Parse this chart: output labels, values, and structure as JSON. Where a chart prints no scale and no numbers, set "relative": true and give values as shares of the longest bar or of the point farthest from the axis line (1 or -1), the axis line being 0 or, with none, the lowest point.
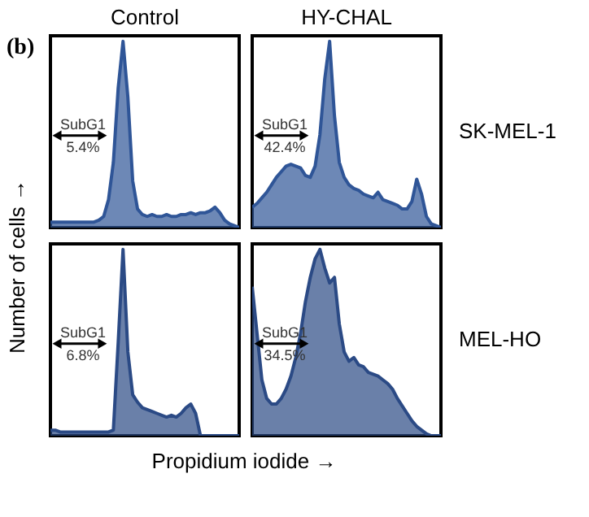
{
  "chart_data": [
    {
      "type": "area",
      "relative": true,
      "title": "Control",
      "ylabel": "Number of cells →",
      "color": "#2f5597",
      "annotations": [
        "(b)",
        "SubG1",
        "5.4%"
      ],
      "categories": [
        null,
        null,
        null,
        null,
        null,
        null,
        null,
        null,
        null,
        null,
        null,
        null,
        null,
        null,
        null,
        null,
        null,
        null,
        null,
        null,
        null,
        null,
        null,
        null,
        null,
        null,
        null,
        null,
        null,
        null,
        null,
        null,
        null,
        null,
        null,
        null,
        null,
        null,
        null,
        null
      ],
      "values": [
        0.03,
        0.03,
        0.03,
        0.03,
        0.03,
        0.03,
        0.03,
        0.03,
        0.03,
        0.03,
        0.04,
        0.06,
        0.15,
        0.35,
        0.75,
        1.0,
        0.7,
        0.25,
        0.1,
        0.07,
        0.06,
        0.07,
        0.06,
        0.06,
        0.07,
        0.06,
        0.06,
        0.07,
        0.07,
        0.08,
        0.07,
        0.08,
        0.08,
        0.09,
        0.11,
        0.08,
        0.04,
        0.02,
        0.01,
        0.0
      ]
    },
    {
      "type": "area",
      "relative": true,
      "title": "HY-CHAL",
      "y2label": "SK-MEL-1",
      "color": "#2f5597",
      "annotations": [
        "SubG1",
        "42.4%"
      ],
      "categories": [
        null,
        null,
        null,
        null,
        null,
        null,
        null,
        null,
        null,
        null,
        null,
        null,
        null,
        null,
        null,
        null,
        null,
        null,
        null,
        null,
        null,
        null,
        null,
        null,
        null,
        null,
        null,
        null,
        null,
        null,
        null,
        null,
        null,
        null,
        null,
        null,
        null,
        null,
        null,
        null
      ],
      "values": [
        0.11,
        0.13,
        0.16,
        0.19,
        0.23,
        0.27,
        0.3,
        0.33,
        0.34,
        0.33,
        0.32,
        0.28,
        0.27,
        0.33,
        0.5,
        0.8,
        1.0,
        0.6,
        0.35,
        0.27,
        0.23,
        0.21,
        0.2,
        0.18,
        0.17,
        0.16,
        0.19,
        0.15,
        0.14,
        0.13,
        0.12,
        0.1,
        0.1,
        0.14,
        0.26,
        0.18,
        0.06,
        0.02,
        0.01,
        0.0
      ]
    },
    {
      "type": "area",
      "relative": true,
      "xlabel": "Propidium iodide →",
      "color": "#2b4a85",
      "annotations": [
        "SubG1",
        "6.8%"
      ],
      "categories": [
        null,
        null,
        null,
        null,
        null,
        null,
        null,
        null,
        null,
        null,
        null,
        null,
        null,
        null,
        null,
        null,
        null,
        null,
        null,
        null,
        null,
        null,
        null,
        null,
        null,
        null,
        null,
        null,
        null,
        null,
        null,
        null,
        null,
        null,
        null,
        null,
        null,
        null,
        null,
        null
      ],
      "values": [
        0.03,
        0.03,
        0.02,
        0.02,
        0.02,
        0.02,
        0.02,
        0.02,
        0.02,
        0.02,
        0.02,
        0.02,
        0.02,
        0.03,
        0.5,
        1.0,
        0.45,
        0.22,
        0.18,
        0.15,
        0.14,
        0.13,
        0.12,
        0.11,
        0.1,
        0.11,
        0.1,
        0.12,
        0.15,
        0.17,
        0.12,
        0.0,
        0.0,
        0.0,
        0.0,
        0.0,
        0.0,
        0.0,
        0.0,
        0.0
      ]
    },
    {
      "type": "area",
      "relative": true,
      "y2label": "MEL-HO",
      "color": "#2b4a85",
      "annotations": [
        "SubG1",
        "34.5%"
      ],
      "categories": [
        null,
        null,
        null,
        null,
        null,
        null,
        null,
        null,
        null,
        null,
        null,
        null,
        null,
        null,
        null,
        null,
        null,
        null,
        null,
        null,
        null,
        null,
        null,
        null,
        null,
        null,
        null,
        null,
        null,
        null,
        null,
        null,
        null,
        null,
        null,
        null,
        null,
        null,
        null,
        null
      ],
      "values": [
        0.8,
        0.55,
        0.3,
        0.2,
        0.17,
        0.17,
        0.2,
        0.25,
        0.32,
        0.42,
        0.55,
        0.72,
        0.85,
        0.95,
        1.0,
        0.9,
        0.82,
        0.85,
        0.6,
        0.45,
        0.4,
        0.42,
        0.38,
        0.37,
        0.34,
        0.33,
        0.32,
        0.3,
        0.28,
        0.25,
        0.2,
        0.16,
        0.12,
        0.08,
        0.05,
        0.03,
        0.01,
        0.0,
        0.0,
        0.0
      ]
    }
  ]
}
